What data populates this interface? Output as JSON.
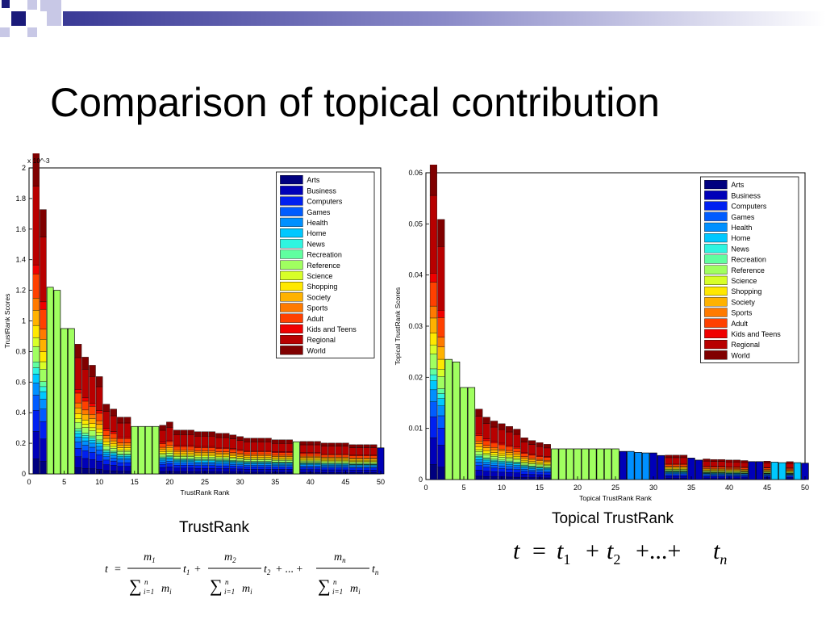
{
  "slide": {
    "title": "Comparison of topical contribution",
    "caption_left": "TrustRank",
    "caption_right": "Topical TrustRank"
  },
  "colors": {
    "deco_dark": "#1a1a7a",
    "deco_light": "#c8c8e6"
  },
  "formulas": {
    "left": "t = m1/Σ(i=1..n) mi · t1 + m2/Σ(i=1..n) mi · t2 + ... + mn/Σ(i=1..n) mi · tn",
    "right": "t = t1 + t2 + ... + tn"
  },
  "chart_data": [
    {
      "type": "bar",
      "stacked": true,
      "xlabel": "TrustRank Rank",
      "ylabel": "TrustRank Scores",
      "y_multiplier": "x 10^-3",
      "xlim": [
        0,
        50
      ],
      "ylim": [
        0,
        2
      ],
      "xticks": [
        0,
        5,
        10,
        15,
        20,
        25,
        30,
        35,
        40,
        45,
        50
      ],
      "yticks": [
        0,
        0.2,
        0.4,
        0.6,
        0.8,
        1,
        1.2,
        1.4,
        1.6,
        1.8,
        2
      ],
      "ytick_labels": [
        "0",
        "0.2",
        "0.4",
        "0.6",
        "0.8",
        "1",
        "1.2",
        "1.4",
        "1.6",
        "1.8",
        "2"
      ],
      "legend_position": "top-right",
      "legend": [
        "Arts",
        "Business",
        "Computers",
        "Games",
        "Health",
        "Home",
        "News",
        "Recreation",
        "Reference",
        "Science",
        "Shopping",
        "Society",
        "Sports",
        "Adult",
        "Kids and Teens",
        "Regional",
        "World"
      ],
      "totals": [
        1.98,
        1.63,
        1.22,
        1.2,
        0.95,
        0.95,
        0.8,
        0.72,
        0.67,
        0.6,
        0.43,
        0.4,
        0.35,
        0.35,
        0.31,
        0.31,
        0.31,
        0.31,
        0.3,
        0.32,
        0.27,
        0.27,
        0.27,
        0.26,
        0.26,
        0.26,
        0.25,
        0.25,
        0.24,
        0.23,
        0.22,
        0.22,
        0.22,
        0.22,
        0.21,
        0.21,
        0.21,
        0.21,
        0.2,
        0.2,
        0.2,
        0.19,
        0.19,
        0.19,
        0.19,
        0.18,
        0.18,
        0.18,
        0.18,
        0.17
      ],
      "single_topic_bars": {
        "3": "Reference",
        "4": "Reference",
        "5": "Reference",
        "6": "Reference",
        "15": "Reference",
        "16": "Reference",
        "17": "Reference",
        "18": "Reference",
        "38": "Reference",
        "50": "Business"
      }
    },
    {
      "type": "bar",
      "stacked": true,
      "xlabel": "Topical TrustRank Rank",
      "ylabel": "Topical TrustRank Scores",
      "xlim": [
        0,
        50
      ],
      "ylim": [
        0,
        0.06
      ],
      "xticks": [
        0,
        5,
        10,
        15,
        20,
        25,
        30,
        35,
        40,
        45,
        50
      ],
      "yticks": [
        0,
        0.01,
        0.02,
        0.03,
        0.04,
        0.05,
        0.06
      ],
      "ytick_labels": [
        "0",
        "0.01",
        "0.02",
        "0.03",
        "0.04",
        "0.05",
        "0.06"
      ],
      "legend_position": "top-right",
      "legend": [
        "Arts",
        "Business",
        "Computers",
        "Games",
        "Health",
        "Home",
        "News",
        "Recreation",
        "Reference",
        "Science",
        "Shopping",
        "Society",
        "Sports",
        "Adult",
        "Kids and Teens",
        "Regional",
        "World"
      ],
      "totals": [
        0.0585,
        0.048,
        0.0235,
        0.023,
        0.018,
        0.018,
        0.013,
        0.0115,
        0.0108,
        0.0103,
        0.0098,
        0.0093,
        0.0077,
        0.0072,
        0.0068,
        0.0065,
        0.006,
        0.006,
        0.006,
        0.006,
        0.006,
        0.006,
        0.006,
        0.006,
        0.006,
        0.0055,
        0.0055,
        0.0053,
        0.0052,
        0.0052,
        0.0047,
        0.0045,
        0.0045,
        0.0045,
        0.0042,
        0.0038,
        0.0038,
        0.0037,
        0.0037,
        0.0036,
        0.0036,
        0.0035,
        0.0035,
        0.0035,
        0.0034,
        0.0034,
        0.0033,
        0.0033,
        0.0033,
        0.0032
      ],
      "single_topic_bars": {
        "3": "Reference",
        "4": "Reference",
        "5": "Reference",
        "6": "Reference",
        "17": "Reference",
        "18": "Reference",
        "19": "Reference",
        "20": "Reference",
        "21": "Reference",
        "22": "Reference",
        "23": "Reference",
        "24": "Reference",
        "25": "Reference",
        "26": "Business",
        "27": "Health",
        "28": "Health",
        "29": "Health",
        "30": "Business",
        "31": "Business",
        "35": "Business",
        "36": "Business",
        "43": "Business",
        "44": "Business",
        "46": "Home",
        "47": "Home",
        "49": "Home",
        "50": "Business"
      }
    }
  ]
}
